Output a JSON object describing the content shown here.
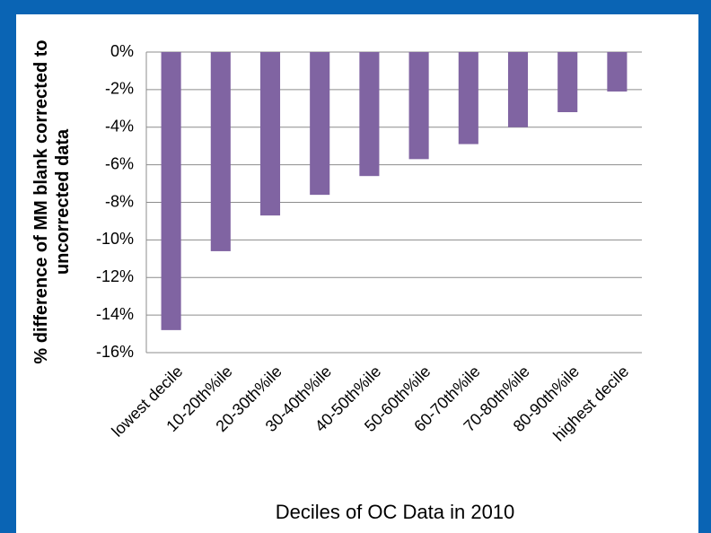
{
  "chart_data": {
    "type": "bar",
    "xlabel": "Deciles of OC Data in 2010",
    "ylabel": [
      "% difference of MM blank corrected to",
      "uncorrected data"
    ],
    "categories": [
      "lowest decile",
      "10-20th%ile",
      "20-30th%ile",
      "30-40th%ile",
      "40-50th%ile",
      "50-60th%ile",
      "60-70th%ile",
      "70-80th%ile",
      "80-90th%ile",
      "highest decile"
    ],
    "values": [
      -14.8,
      -10.6,
      -8.7,
      -7.6,
      -6.6,
      -5.7,
      -4.9,
      -4.0,
      -3.2,
      -2.1
    ],
    "color": "#8064a2",
    "ylim": [
      -16,
      0
    ],
    "yticks": [
      {
        "value": 0,
        "label": "0%"
      },
      {
        "value": -2,
        "label": "-2%"
      },
      {
        "value": -4,
        "label": "-4%"
      },
      {
        "value": -6,
        "label": "-6%"
      },
      {
        "value": -8,
        "label": "-8%"
      },
      {
        "value": -10,
        "label": "-10%"
      },
      {
        "value": -12,
        "label": "-12%"
      },
      {
        "value": -14,
        "label": "-14%"
      },
      {
        "value": -16,
        "label": "-16%"
      }
    ],
    "grid": true
  }
}
